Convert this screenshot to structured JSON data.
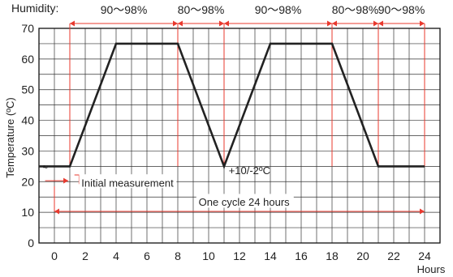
{
  "chart_data": {
    "type": "line",
    "ylabel": "Temperature (ºC)",
    "xlabel": "Hours",
    "xlim": [
      -1,
      25
    ],
    "ylim": [
      0,
      70
    ],
    "x_ticks": [
      0,
      2,
      4,
      6,
      8,
      10,
      12,
      14,
      16,
      18,
      20,
      22,
      24
    ],
    "y_ticks": [
      0,
      10,
      20,
      30,
      40,
      50,
      60,
      70
    ],
    "minor_grid_step": 1,
    "grid": true,
    "series": [
      {
        "points": [
          [
            -1,
            25
          ],
          [
            1,
            25
          ],
          [
            4,
            65
          ],
          [
            8,
            65
          ],
          [
            11,
            25
          ],
          [
            14,
            65
          ],
          [
            18,
            65
          ],
          [
            21,
            25
          ],
          [
            24,
            25
          ]
        ],
        "color": "#222222"
      }
    ],
    "markers": [
      1,
      8,
      11,
      18,
      21,
      24
    ],
    "humidity": {
      "label": "Humidity:",
      "ranges": [
        {
          "from": 1,
          "to": 8,
          "label": "90～98%"
        },
        {
          "from": 8,
          "to": 11,
          "label": "80～98%"
        },
        {
          "from": 11,
          "to": 18,
          "label": "90～98%"
        },
        {
          "from": 18,
          "to": 21,
          "label": "80～98%"
        },
        {
          "from": 21,
          "to": 24,
          "label": "90～98%"
        }
      ]
    },
    "annotations": {
      "tolerance": "+10/-2ºC",
      "initial": "Initial measurement",
      "cycle": "One cycle 24 hours"
    },
    "colors": {
      "accent": "#e8392e",
      "line": "#222222",
      "grid": "#333333"
    }
  }
}
